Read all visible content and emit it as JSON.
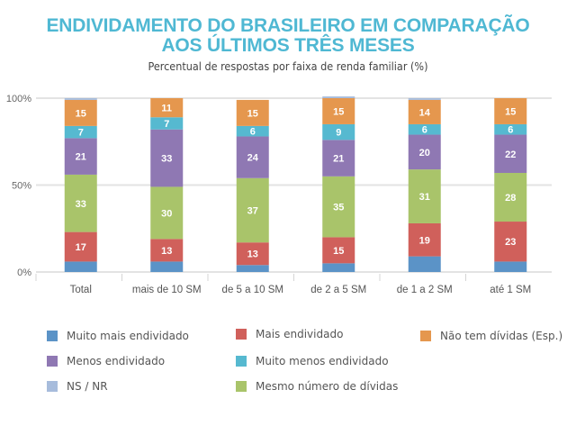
{
  "chart_data": {
    "type": "bar",
    "stacked": true,
    "title": "ENDIVIDAMENTO DO BRASILEIRO EM COMPARAÇÃO AOS ÚLTIMOS TRÊS MESES",
    "title_lines": [
      "ENDIVIDAMENTO DO BRASILEIRO EM COMPARAÇÃO",
      "AOS ÚLTIMOS TRÊS MESES"
    ],
    "subtitle": "Percentual de respostas por faixa de renda familiar (%)",
    "xlabel": "",
    "ylabel": "",
    "ylim": [
      0,
      100
    ],
    "yticks": [
      0,
      50,
      100
    ],
    "ytick_labels": [
      "0%",
      "50%",
      "100%"
    ],
    "grid": true,
    "legend_position": "bottom",
    "categories": [
      "Total",
      "mais de 10 SM",
      "de 5 a 10 SM",
      "de 2 a 5 SM",
      "de 1 a 2 SM",
      "até 1 SM"
    ],
    "series": [
      {
        "name": "Muito mais endividado",
        "color": "#5b93c7",
        "labeled": false,
        "values": [
          6,
          6,
          4,
          5,
          9,
          6
        ]
      },
      {
        "name": "Mais endividado",
        "color": "#d0605b",
        "labeled": true,
        "values": [
          17,
          13,
          13,
          15,
          19,
          23
        ]
      },
      {
        "name": "Mesmo número de dívidas",
        "color": "#a9c46a",
        "labeled": true,
        "values": [
          33,
          30,
          37,
          35,
          31,
          28
        ]
      },
      {
        "name": "Menos endividado",
        "color": "#8f78b3",
        "labeled": true,
        "values": [
          21,
          33,
          24,
          21,
          20,
          22
        ]
      },
      {
        "name": "Muito menos endividado",
        "color": "#56b9d0",
        "labeled": true,
        "values": [
          7,
          7,
          6,
          9,
          6,
          6
        ]
      },
      {
        "name": "Não tem dívidas (Esp.)",
        "color": "#e5974e",
        "labeled": true,
        "values": [
          15,
          11,
          15,
          15,
          14,
          15
        ]
      },
      {
        "name": "NS / NR",
        "color": "#a7bcdc",
        "labeled": false,
        "values": [
          1,
          0,
          0,
          1,
          1,
          0
        ]
      }
    ],
    "legend_order": [
      "Muito mais endividado",
      "Mais endividado",
      "Não tem dívidas (Esp.)",
      "Menos endividado",
      "Muito menos endividado",
      "NS / NR",
      "Mesmo número de dívidas"
    ]
  }
}
